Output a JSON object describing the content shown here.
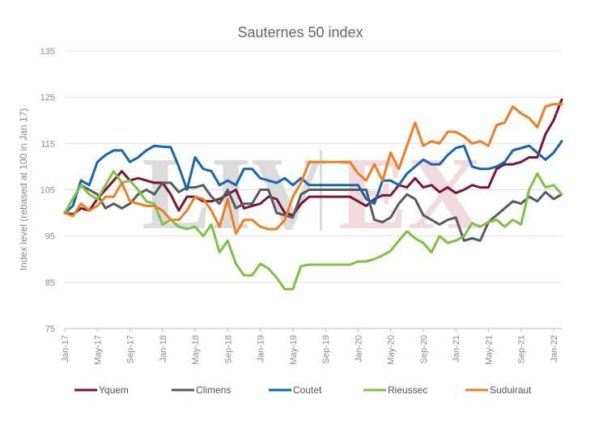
{
  "chart_data": {
    "type": "line",
    "title": "Sauternes 50 index",
    "xlabel": "",
    "ylabel": "Index level (rebased at 100 in Jan 17)",
    "ylim": [
      75,
      135
    ],
    "yticks": [
      75,
      85,
      95,
      105,
      115,
      125,
      135
    ],
    "grid": "horizontal",
    "legend": "bottom",
    "watermark": "LIV-EX",
    "x_tick_labels": [
      "Jan-17",
      "May-17",
      "Sep-17",
      "Jan-18",
      "May-18",
      "Sep-18",
      "Jan-19",
      "May-19",
      "Sep-19",
      "Jan-20",
      "May-20",
      "Sep-20",
      "Jan-21",
      "May-21",
      "Sep-21",
      "Jan-22"
    ],
    "x_tick_index": [
      0,
      4,
      8,
      12,
      16,
      20,
      24,
      28,
      32,
      36,
      40,
      44,
      48,
      52,
      56,
      60
    ],
    "x_count": 62,
    "series": [
      {
        "name": "Yquem",
        "color": "#7b1538",
        "values": [
          100,
          99.7,
          101,
          100.5,
          103,
          105,
          107,
          109,
          107,
          107.5,
          107,
          106.5,
          106.5,
          104,
          100.5,
          103.5,
          103.5,
          102.5,
          102.5,
          103,
          104,
          105,
          101,
          101.5,
          102,
          103.5,
          103,
          100,
          99.5,
          102,
          103.5,
          103.5,
          103.5,
          103.5,
          103.5,
          103.5,
          102.5,
          101.5,
          103,
          103.8,
          103.8,
          106,
          105.5,
          107.5,
          105.5,
          106,
          104.5,
          105.5,
          104.3,
          105,
          106,
          105.5,
          105.5,
          109.5,
          110.5,
          110.5,
          111,
          112,
          112,
          117,
          120,
          124.5
        ]
      },
      {
        "name": "Climens",
        "color": "#555c60",
        "values": [
          100,
          103,
          106,
          105,
          104,
          101,
          102,
          101,
          102,
          104,
          105,
          104,
          106.5,
          106.5,
          104.5,
          105.5,
          105.5,
          106,
          103.5,
          102,
          105,
          101,
          102,
          102,
          105,
          105,
          100,
          99.5,
          99,
          104,
          105,
          105,
          105,
          105,
          105,
          105,
          105,
          105,
          98.5,
          98,
          99,
          102,
          104,
          103,
          99.5,
          98.5,
          97.5,
          98.5,
          99,
          94,
          94.5,
          94,
          98,
          99.5,
          101,
          102.5,
          102,
          103.5,
          102.5,
          104.5,
          103,
          104
        ]
      },
      {
        "name": "Coutet",
        "color": "#1565b0",
        "values": [
          100,
          101.5,
          107,
          106,
          111,
          112.5,
          113.5,
          113.5,
          111,
          112,
          113.5,
          114.5,
          114.3,
          114.2,
          110,
          105,
          112,
          109.5,
          109,
          106,
          107,
          106,
          109.5,
          109.5,
          107.5,
          107,
          106.5,
          107.5,
          106,
          107.5,
          106,
          106,
          106,
          106,
          106,
          106,
          106,
          103,
          102,
          107,
          107,
          106,
          108.5,
          110,
          111.5,
          110.5,
          110.5,
          112.5,
          114,
          114.5,
          110,
          109.5,
          109.5,
          110,
          111,
          113.5,
          114,
          114.5,
          113,
          111.5,
          113,
          115.5
        ]
      },
      {
        "name": "Rieussec",
        "color": "#7dc242",
        "values": [
          100,
          103,
          106,
          104,
          103,
          106,
          109,
          106.5,
          107,
          105,
          102.5,
          102,
          97.5,
          98.5,
          97,
          96.5,
          97,
          95,
          97.5,
          91.5,
          94,
          89,
          86.5,
          86.5,
          89,
          88,
          86,
          83.5,
          83.5,
          88.5,
          88.8,
          88.8,
          88.8,
          88.8,
          88.8,
          88.8,
          89.5,
          89.5,
          90,
          90.8,
          91.8,
          94,
          96,
          94.5,
          93.5,
          91.5,
          95,
          93.5,
          94,
          95,
          97.8,
          97,
          98,
          98.5,
          97,
          98.5,
          97.5,
          105,
          108.5,
          105.5,
          106,
          104
        ]
      },
      {
        "name": "Suduiraut",
        "color": "#ef7d22",
        "values": [
          100,
          99.3,
          102,
          100.5,
          101.5,
          103.5,
          103.5,
          106.5,
          102.5,
          102,
          101.5,
          101.5,
          100.5,
          98.5,
          98.5,
          100.5,
          103.5,
          103,
          100.5,
          97,
          103,
          95.5,
          98.5,
          98.5,
          97,
          96.5,
          96.5,
          98.5,
          103.5,
          106.5,
          111,
          111,
          111,
          111,
          111,
          111,
          108.5,
          107,
          110.5,
          107,
          113,
          109.5,
          114.5,
          119.5,
          114.5,
          115.5,
          115,
          117.5,
          117.5,
          116.5,
          115,
          115.5,
          114.5,
          119,
          119.5,
          123,
          121.5,
          120.5,
          118.5,
          123,
          123.5,
          123.5
        ]
      }
    ]
  }
}
